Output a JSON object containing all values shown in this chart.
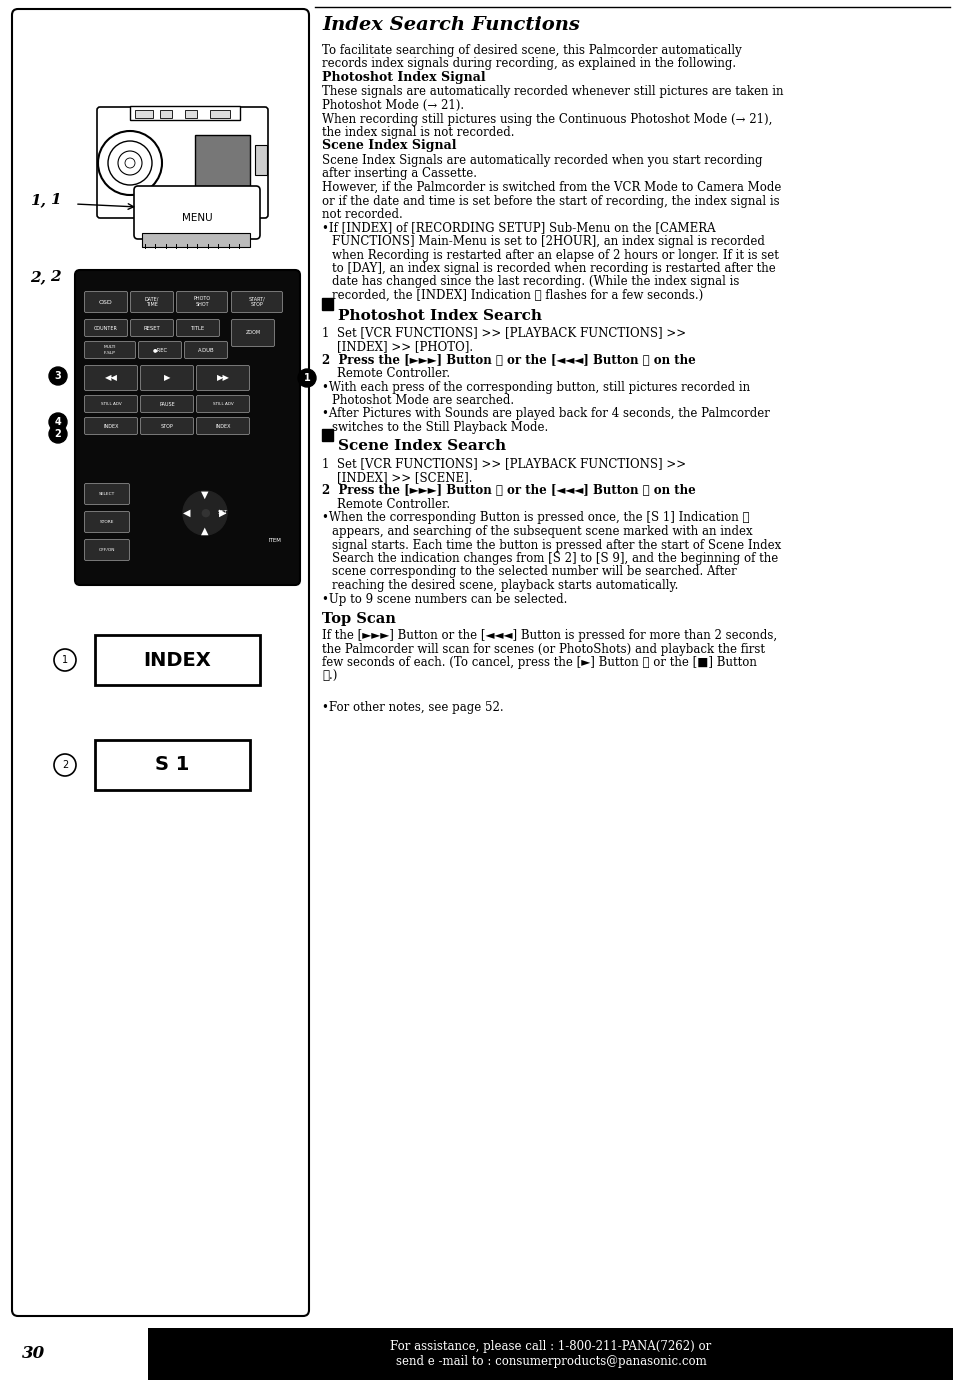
{
  "page_number": "30",
  "footer_text": "For assistance, please call : 1-800-211-PANA(7262) or\nsend e -mail to : consumerproducts@panasonic.com",
  "title": "Index Search Functions",
  "intro": "To facilitate searching of desired scene, this Palmcorder automatically\nrecords index signals during recording, as explained in the following.",
  "photoshot_signal_title": "Photoshot Index Signal",
  "photoshot_signal_text": "These signals are automatically recorded whenever still pictures are taken in\nPhotoshot Mode (→ 21).\nWhen recording still pictures using the Continuous Photoshot Mode (→ 21),\nthe index signal is not recorded.",
  "scene_signal_title": "Scene Index Signal",
  "scene_signal_text": "Scene Index Signals are automatically recorded when you start recording\nafter inserting a Cassette.\nHowever, if the Palmcorder is switched from the VCR Mode to Camera Mode\nor if the date and time is set before the start of recording, the index signal is\nnot recorded.",
  "bullet1_lines": [
    "•If [INDEX] of [RECORDING SETUP] Sub-Menu on the [CAMERA",
    "FUNCTIONS] Main-Menu is set to [2HOUR], an index signal is recorded",
    "when Recording is restarted after an elapse of 2 hours or longer. If it is set",
    "to [DAY], an index signal is recorded when recording is restarted after the",
    "date has changed since the last recording. (While the index signal is",
    "recorded, the [INDEX] Indication ① flashes for a few seconds.)"
  ],
  "photoshot_search_title": "Photoshot Index Search",
  "photoshot_step1_lines": [
    "1  Set [VCR FUNCTIONS] >> [PLAYBACK FUNCTIONS] >>",
    "    [INDEX] >> [PHOTO]."
  ],
  "photoshot_step2_lines": [
    "2  Press the [►►►] Button ① or the [◄◄◄] Button ② on the",
    "    Remote Controller."
  ],
  "photoshot_bullet1_lines": [
    "•With each press of the corresponding button, still pictures recorded in",
    "Photoshot Mode are searched."
  ],
  "photoshot_bullet2_lines": [
    "•After Pictures with Sounds are played back for 4 seconds, the Palmcorder",
    "switches to the Still Playback Mode."
  ],
  "scene_search_title": "Scene Index Search",
  "scene_step1_lines": [
    "1  Set [VCR FUNCTIONS] >> [PLAYBACK FUNCTIONS] >>",
    "    [INDEX] >> [SCENE]."
  ],
  "scene_step2_lines": [
    "2  Press the [►►►] Button ① or the [◄◄◄] Button ② on the",
    "    Remote Controller."
  ],
  "scene_bullet1_lines": [
    "•When the corresponding Button is pressed once, the [S 1] Indication ②",
    "appears, and searching of the subsequent scene marked with an index",
    "signal starts. Each time the button is pressed after the start of Scene Index",
    "Search the indication changes from [S 2] to [S 9], and the beginning of the",
    "scene corresponding to the selected number will be searched. After",
    "reaching the desired scene, playback starts automatically."
  ],
  "scene_bullet2_lines": [
    "•Up to 9 scene numbers can be selected."
  ],
  "top_scan_title": "Top Scan",
  "top_scan_lines": [
    "If the [►►►] Button or the [◄◄◄] Button is pressed for more than 2 seconds,",
    "the Palmcorder will scan for scenes (or PhotoShots) and playback the first",
    "few seconds of each. (To cancel, press the [►] Button ③ or the [■] Button",
    "④.)"
  ],
  "note": "•For other notes, see page 52.",
  "index_box_text": "INDEX",
  "s1_box_text": "S 1",
  "bg_color": "#ffffff",
  "text_color": "#000000",
  "footer_bg": "#000000",
  "footer_fg": "#ffffff"
}
